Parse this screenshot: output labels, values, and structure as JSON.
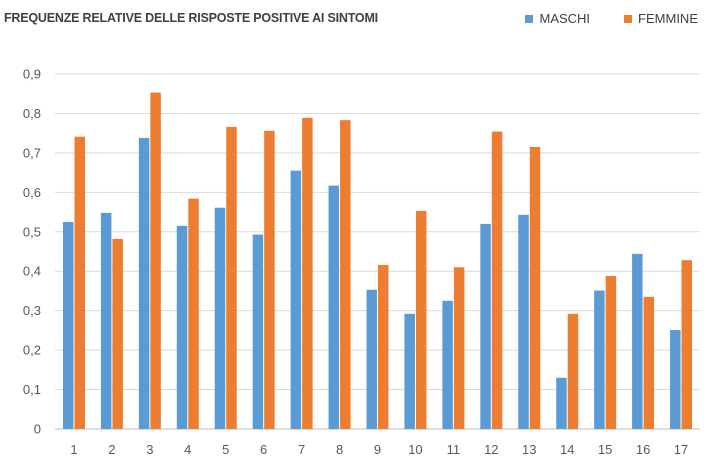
{
  "chart_data": {
    "type": "bar",
    "title": "FREQUENZE RELATIVE DELLE RISPOSTE POSITIVE AI SINTOMI",
    "xlabel": "",
    "ylabel": "",
    "categories": [
      "1",
      "2",
      "3",
      "4",
      "5",
      "6",
      "7",
      "8",
      "9",
      "10",
      "11",
      "12",
      "13",
      "14",
      "15",
      "16",
      "17"
    ],
    "series": [
      {
        "name": "MASCHI",
        "color": "#5B9BD5",
        "values": [
          0.525,
          0.548,
          0.738,
          0.515,
          0.561,
          0.493,
          0.655,
          0.617,
          0.353,
          0.292,
          0.325,
          0.52,
          0.543,
          0.13,
          0.351,
          0.444,
          0.251
        ]
      },
      {
        "name": "FEMMINE",
        "color": "#ED7D31",
        "values": [
          0.741,
          0.482,
          0.853,
          0.584,
          0.766,
          0.756,
          0.789,
          0.783,
          0.416,
          0.553,
          0.41,
          0.754,
          0.715,
          0.292,
          0.388,
          0.335,
          0.428
        ]
      }
    ],
    "ylim": [
      0,
      0.9
    ],
    "yticks": [
      "0",
      "0,1",
      "0,2",
      "0,3",
      "0,4",
      "0,5",
      "0,6",
      "0,7",
      "0,8",
      "0,9"
    ],
    "grid": true,
    "legend_position": "top-right"
  }
}
